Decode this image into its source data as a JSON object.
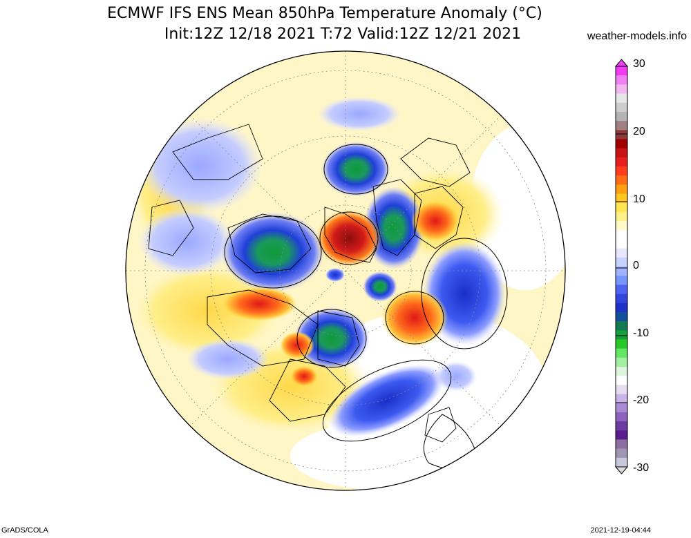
{
  "title": {
    "line1": "ECMWF IFS ENS Mean 850hPa Temperature Anomaly (°C)",
    "line2": "Init:12Z 12/18 2021  T:72 Valid:12Z 12/21 2021"
  },
  "credit": "weather-models.info",
  "footer": {
    "left": "GrADS/COLA",
    "right": "2021-12-19-04:44"
  },
  "colorbar": {
    "labels": [
      "30",
      "20",
      "10",
      "0",
      "-10",
      "-20",
      "-30"
    ],
    "range": [
      -30,
      30
    ],
    "colors": {
      "extreme_warm": "#ff33ff",
      "very_warm": "#cc1111",
      "warm": "#ff6a1a",
      "mild_warm": "#ffe24d",
      "neutral": "#ffffff",
      "cool": "#aab4ff",
      "cold": "#1f3fd8",
      "very_cold": "#18a83a",
      "extreme_cold": "#6a1aa8"
    }
  },
  "map": {
    "projection": "north-polar-stereographic",
    "background_anomaly_color": "#fff6c8"
  }
}
